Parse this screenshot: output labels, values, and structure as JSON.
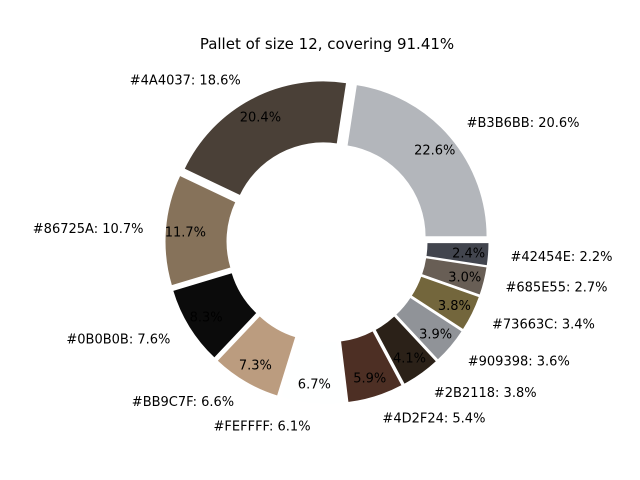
{
  "chart_data": {
    "type": "pie",
    "donut": true,
    "title": "Pallet of size 12, covering 91.41%",
    "slices": [
      {
        "label": "#B3B6BB: 20.6%",
        "value": 22.6,
        "pct_label": "22.6%",
        "color": "#B3B6BB"
      },
      {
        "label": "#4A4037: 18.6%",
        "value": 20.4,
        "pct_label": "20.4%",
        "color": "#4A4037"
      },
      {
        "label": "#86725A: 10.7%",
        "value": 11.7,
        "pct_label": "11.7%",
        "color": "#86725A"
      },
      {
        "label": "#0B0B0B: 7.6%",
        "value": 8.3,
        "pct_label": "8.3%",
        "color": "#0B0B0B"
      },
      {
        "label": "#BB9C7F: 6.6%",
        "value": 7.3,
        "pct_label": "7.3%",
        "color": "#BB9C7F"
      },
      {
        "label": "#FEFFFF: 6.1%",
        "value": 6.7,
        "pct_label": "6.7%",
        "color": "#FEFFFF"
      },
      {
        "label": "#4D2F24: 5.4%",
        "value": 5.9,
        "pct_label": "5.9%",
        "color": "#4D2F24"
      },
      {
        "label": "#2B2118: 3.8%",
        "value": 4.1,
        "pct_label": "4.1%",
        "color": "#2B2118"
      },
      {
        "label": "#909398: 3.6%",
        "value": 3.9,
        "pct_label": "3.9%",
        "color": "#909398"
      },
      {
        "label": "#73663C: 3.4%",
        "value": 3.8,
        "pct_label": "3.8%",
        "color": "#73663C"
      },
      {
        "label": "#685E55: 2.7%",
        "value": 3.0,
        "pct_label": "3.0%",
        "color": "#685E55"
      },
      {
        "label": "#42454E: 2.2%",
        "value": 2.4,
        "pct_label": "2.4%",
        "color": "#42454E"
      }
    ]
  }
}
